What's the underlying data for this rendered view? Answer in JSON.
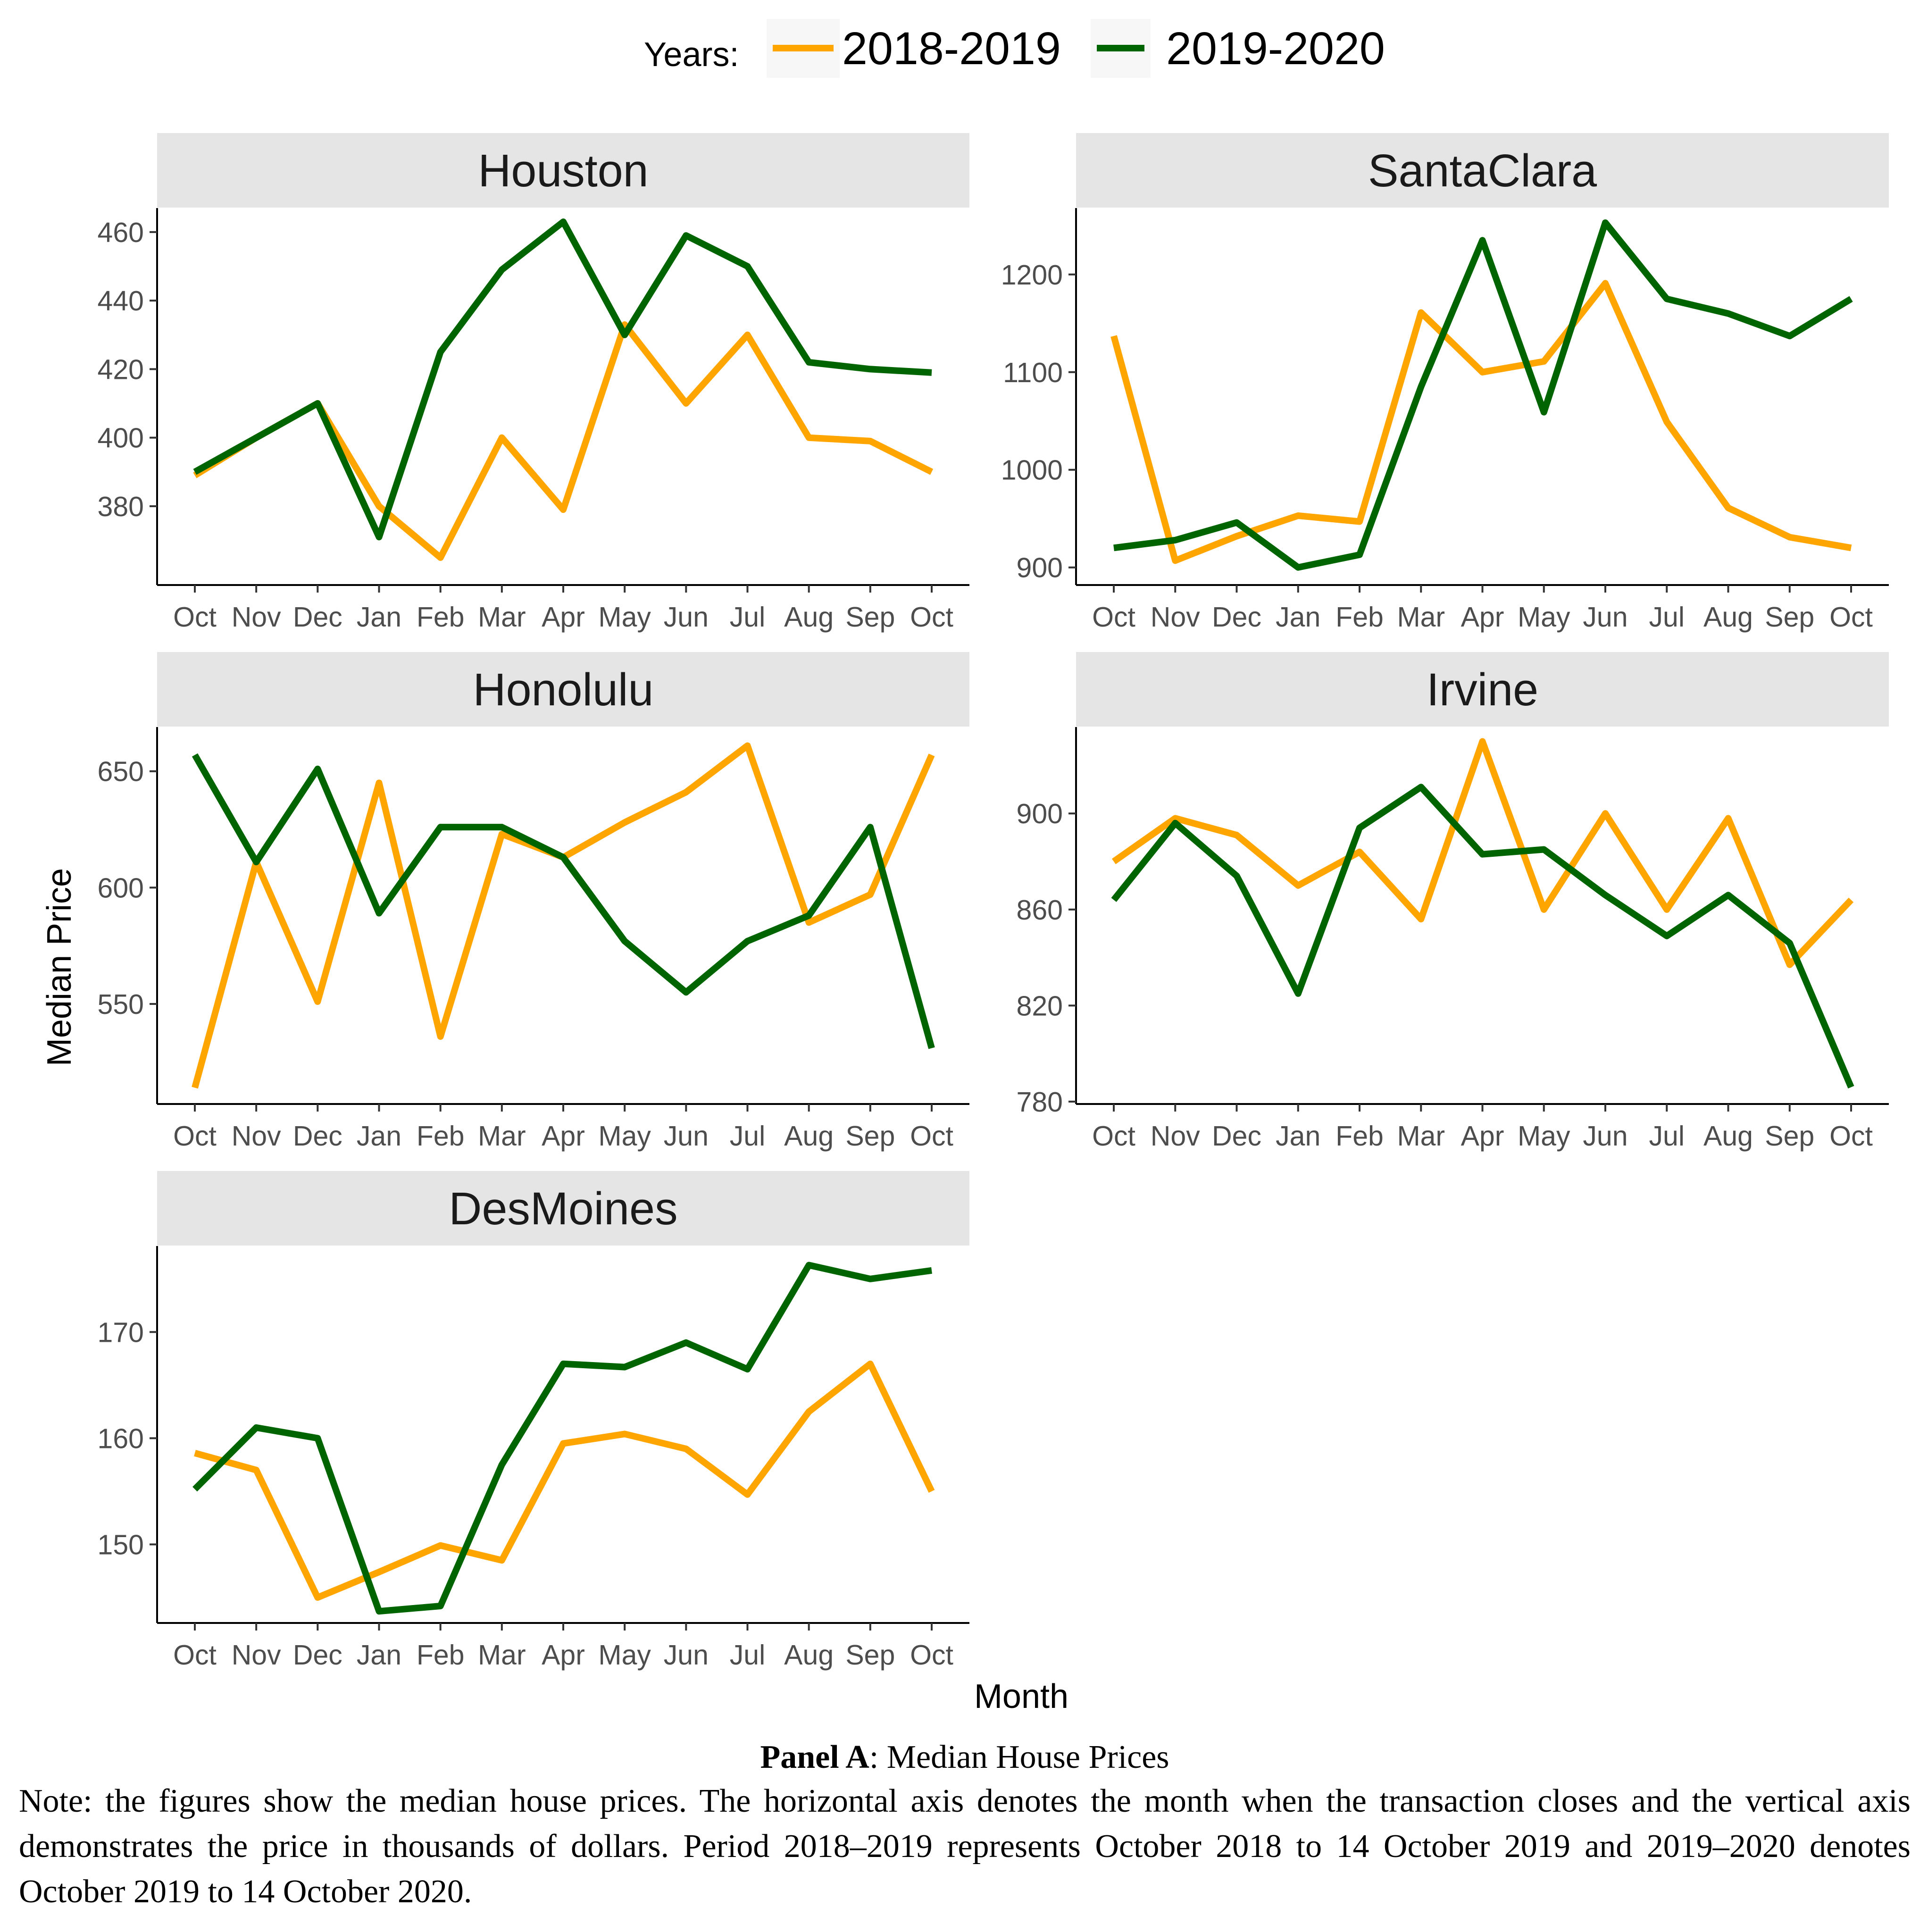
{
  "legend": {
    "title": "Years:",
    "entries": [
      {
        "label": "2018-2019",
        "color": "#FFA500"
      },
      {
        "label": "2019-2020",
        "color": "#006400"
      }
    ]
  },
  "axes": {
    "xlabel": "Month",
    "ylabel": "Median Price"
  },
  "caption": {
    "panel": "Panel A",
    "title_rest": ": Median House Prices",
    "note": "Note: the figures show the median house prices. The horizontal axis denotes the month when the transaction closes and the vertical axis demonstrates the price in thousands of dollars. Period 2018–2019 represents October 2018 to 14 October 2019 and 2019–2020 denotes October 2019 to 14 October 2020."
  },
  "chart_data": [
    {
      "type": "line",
      "title": "Houston",
      "categories": [
        "Oct",
        "Nov",
        "Dec",
        "Jan",
        "Feb",
        "Mar",
        "Apr",
        "May",
        "Jun",
        "Jul",
        "Aug",
        "Sep",
        "Oct"
      ],
      "ylim": [
        357,
        467
      ],
      "yticks": [
        380,
        400,
        420,
        440,
        460
      ],
      "series": [
        {
          "name": "2018-2019",
          "values": [
            389,
            400,
            410,
            380,
            365,
            400,
            379,
            433,
            410,
            430,
            400,
            399,
            390
          ]
        },
        {
          "name": "2019-2020",
          "values": [
            390,
            400,
            410,
            371,
            425,
            449,
            463,
            430,
            459,
            450,
            422,
            420,
            419
          ]
        }
      ]
    },
    {
      "type": "line",
      "title": "SantaClara",
      "categories": [
        "Oct",
        "Nov",
        "Dec",
        "Jan",
        "Feb",
        "Mar",
        "Apr",
        "May",
        "Jun",
        "Jul",
        "Aug",
        "Sep",
        "Oct"
      ],
      "ylim": [
        882,
        1268
      ],
      "yticks": [
        900,
        1000,
        1100,
        1200
      ],
      "series": [
        {
          "name": "2018-2019",
          "values": [
            1137,
            907,
            932,
            953,
            947,
            1161,
            1100,
            1111,
            1191,
            1049,
            961,
            931,
            920
          ]
        },
        {
          "name": "2019-2020",
          "values": [
            920,
            928,
            946,
            900,
            913,
            1085,
            1235,
            1059,
            1253,
            1175,
            1160,
            1137,
            1175
          ]
        }
      ]
    },
    {
      "type": "line",
      "title": "Honolulu",
      "categories": [
        "Oct",
        "Nov",
        "Dec",
        "Jan",
        "Feb",
        "Mar",
        "Apr",
        "May",
        "Jun",
        "Jul",
        "Aug",
        "Sep",
        "Oct"
      ],
      "ylim": [
        507,
        669
      ],
      "yticks": [
        550,
        600,
        650
      ],
      "series": [
        {
          "name": "2018-2019",
          "values": [
            514,
            611,
            551,
            645,
            536,
            623,
            613,
            628,
            641,
            661,
            585,
            597,
            657
          ]
        },
        {
          "name": "2019-2020",
          "values": [
            657,
            611,
            651,
            589,
            626,
            626,
            613,
            577,
            555,
            577,
            588,
            626,
            531
          ]
        }
      ]
    },
    {
      "type": "line",
      "title": "Irvine",
      "categories": [
        "Oct",
        "Nov",
        "Dec",
        "Jan",
        "Feb",
        "Mar",
        "Apr",
        "May",
        "Jun",
        "Jul",
        "Aug",
        "Sep",
        "Oct"
      ],
      "ylim": [
        779,
        936
      ],
      "yticks": [
        780,
        820,
        860,
        900
      ],
      "series": [
        {
          "name": "2018-2019",
          "values": [
            880,
            898,
            891,
            870,
            884,
            856,
            930,
            860,
            900,
            860,
            898,
            837,
            864
          ]
        },
        {
          "name": "2019-2020",
          "values": [
            864,
            896,
            874,
            825,
            894,
            911,
            883,
            885,
            866,
            849,
            866,
            846,
            786
          ]
        }
      ]
    },
    {
      "type": "line",
      "title": "DesMoines",
      "categories": [
        "Oct",
        "Nov",
        "Dec",
        "Jan",
        "Feb",
        "Mar",
        "Apr",
        "May",
        "Jun",
        "Jul",
        "Aug",
        "Sep",
        "Oct"
      ],
      "ylim": [
        142.6,
        178.1
      ],
      "yticks": [
        150,
        160,
        170
      ],
      "series": [
        {
          "name": "2018-2019",
          "values": [
            158.6,
            157.0,
            145.0,
            147.4,
            149.9,
            148.5,
            159.5,
            160.4,
            159.0,
            154.7,
            162.5,
            167.0,
            155.0
          ]
        },
        {
          "name": "2019-2020",
          "values": [
            155.2,
            161.0,
            160.0,
            143.7,
            144.2,
            157.5,
            167.0,
            166.7,
            169.0,
            166.5,
            176.3,
            175.0,
            175.8
          ]
        }
      ]
    }
  ]
}
